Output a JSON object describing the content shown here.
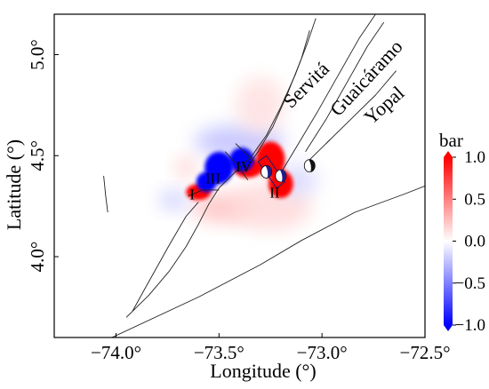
{
  "chart_data": {
    "type": "heatmap",
    "title": "",
    "xlabel": "Longitude (°)",
    "ylabel": "Latitude (°)",
    "xlim": [
      -74.3,
      -72.5
    ],
    "ylim": [
      3.6,
      5.2
    ],
    "xticks": [
      {
        "value": -74.0,
        "label": "−74.0°"
      },
      {
        "value": -73.5,
        "label": "−73.5°"
      },
      {
        "value": -73.0,
        "label": "−73.0°"
      },
      {
        "value": -72.5,
        "label": "−72.5°"
      }
    ],
    "yticks": [
      {
        "value": 4.0,
        "label": "4.0°"
      },
      {
        "value": 4.5,
        "label": "4.5°"
      },
      {
        "value": 5.0,
        "label": "5.0°"
      }
    ],
    "colorbar": {
      "title": "bar",
      "vmin": -1.0,
      "vmax": 1.0,
      "ticks": [
        {
          "value": 1.0,
          "label": "1.0"
        },
        {
          "value": 0.5,
          "label": "0.5"
        },
        {
          "value": 0.0,
          "label": "0.0"
        },
        {
          "value": -0.5,
          "label": "−0.5"
        },
        {
          "value": -1.0,
          "label": "−1.0"
        }
      ],
      "colors": {
        "negative": "#0000ff",
        "zero": "#ffffff",
        "positive": "#ff0000"
      }
    },
    "stress_lobes": [
      {
        "lon": -73.25,
        "lat": 4.48,
        "rx": 0.07,
        "ry": 0.09,
        "value": 1.0
      },
      {
        "lon": -73.2,
        "lat": 4.36,
        "rx": 0.06,
        "ry": 0.07,
        "value": 1.0
      },
      {
        "lon": -73.6,
        "lat": 4.32,
        "rx": 0.06,
        "ry": 0.04,
        "value": 1.0
      },
      {
        "lon": -73.36,
        "lat": 4.44,
        "rx": 0.07,
        "ry": 0.05,
        "value": 1.0
      },
      {
        "lon": -73.5,
        "lat": 4.44,
        "rx": 0.07,
        "ry": 0.08,
        "value": -1.0
      },
      {
        "lon": -73.39,
        "lat": 4.48,
        "rx": 0.06,
        "ry": 0.06,
        "value": -1.0
      },
      {
        "lon": -73.56,
        "lat": 4.37,
        "rx": 0.05,
        "ry": 0.05,
        "value": -1.0
      },
      {
        "lon": -73.4,
        "lat": 4.57,
        "rx": 0.22,
        "ry": 0.08,
        "value": -0.25
      },
      {
        "lon": -73.48,
        "lat": 4.24,
        "rx": 0.15,
        "ry": 0.07,
        "value": 0.25
      },
      {
        "lon": -73.25,
        "lat": 4.25,
        "rx": 0.2,
        "ry": 0.12,
        "value": 0.15
      },
      {
        "lon": -73.12,
        "lat": 4.38,
        "rx": 0.1,
        "ry": 0.08,
        "value": -0.15
      },
      {
        "lon": -73.72,
        "lat": 4.28,
        "rx": 0.07,
        "ry": 0.05,
        "value": -0.2
      },
      {
        "lon": -73.66,
        "lat": 4.44,
        "rx": 0.05,
        "ry": 0.05,
        "value": 0.2
      },
      {
        "lon": -73.3,
        "lat": 4.75,
        "rx": 0.12,
        "ry": 0.14,
        "value": 0.12
      }
    ],
    "faults": [
      {
        "name": "main-trend",
        "points": [
          [
            -74.06,
            4.4
          ],
          [
            -74.05,
            4.3
          ],
          [
            -74.04,
            4.22
          ]
        ]
      },
      {
        "name": "sw-segment",
        "points": [
          [
            -73.95,
            3.7
          ],
          [
            -73.84,
            3.81
          ],
          [
            -73.74,
            3.93
          ],
          [
            -73.66,
            4.05
          ],
          [
            -73.6,
            4.16
          ],
          [
            -73.55,
            4.26
          ],
          [
            -73.5,
            4.34
          ],
          [
            -73.42,
            4.42
          ],
          [
            -73.34,
            4.5
          ],
          [
            -73.27,
            4.6
          ],
          [
            -73.2,
            4.74
          ],
          [
            -73.13,
            4.9
          ],
          [
            -73.07,
            5.06
          ],
          [
            -73.03,
            5.18
          ]
        ]
      },
      {
        "name": "southern",
        "points": [
          [
            -73.92,
            3.73
          ],
          [
            -73.85,
            3.86
          ],
          [
            -73.74,
            4.06
          ],
          [
            -73.66,
            4.2
          ],
          [
            -73.6,
            4.27
          ]
        ]
      },
      {
        "name": "servita",
        "points": [
          [
            -73.38,
            4.42
          ],
          [
            -73.31,
            4.52
          ],
          [
            -73.24,
            4.64
          ],
          [
            -73.17,
            4.8
          ],
          [
            -73.1,
            4.98
          ],
          [
            -73.06,
            5.12
          ]
        ]
      },
      {
        "name": "guaicaramo",
        "points": [
          [
            -73.22,
            4.38
          ],
          [
            -73.12,
            4.55
          ],
          [
            -73.02,
            4.72
          ],
          [
            -72.92,
            4.9
          ],
          [
            -72.82,
            5.08
          ],
          [
            -72.74,
            5.2
          ]
        ]
      },
      {
        "name": "guaicaramo-2",
        "points": [
          [
            -73.08,
            4.52
          ],
          [
            -72.98,
            4.68
          ],
          [
            -72.88,
            4.86
          ],
          [
            -72.78,
            5.04
          ],
          [
            -72.7,
            5.16
          ]
        ]
      },
      {
        "name": "yopal",
        "points": [
          [
            -72.98,
            4.56
          ],
          [
            -72.86,
            4.68
          ],
          [
            -72.74,
            4.8
          ],
          [
            -72.64,
            4.92
          ]
        ]
      },
      {
        "name": "yopal-2",
        "points": [
          [
            -73.06,
            4.48
          ],
          [
            -72.96,
            4.58
          ]
        ]
      },
      {
        "name": "east-lineament",
        "points": [
          [
            -74.02,
            3.6
          ],
          [
            -73.6,
            3.8
          ],
          [
            -73.3,
            3.96
          ],
          [
            -73.1,
            4.08
          ],
          [
            -72.84,
            4.22
          ],
          [
            -72.6,
            4.31
          ],
          [
            -72.5,
            4.35
          ]
        ]
      },
      {
        "name": "local-1",
        "points": [
          [
            -73.47,
            4.52
          ],
          [
            -73.41,
            4.45
          ],
          [
            -73.36,
            4.38
          ]
        ]
      },
      {
        "name": "local-2",
        "points": [
          [
            -73.42,
            4.56
          ],
          [
            -73.33,
            4.47
          ]
        ]
      },
      {
        "name": "local-3",
        "points": [
          [
            -73.65,
            4.3
          ],
          [
            -73.58,
            4.33
          ],
          [
            -73.5,
            4.33
          ]
        ]
      }
    ],
    "zones": [
      {
        "label": "I",
        "lon": -73.63,
        "lat": 4.3
      },
      {
        "label": "II",
        "lon": -73.23,
        "lat": 4.31
      },
      {
        "label": "III",
        "lon": -73.53,
        "lat": 4.38
      },
      {
        "label": "IV",
        "lon": -73.38,
        "lat": 4.44
      }
    ],
    "fault_names": [
      {
        "label": "Servitá",
        "lon": -73.15,
        "lat": 4.73,
        "rotation": -45
      },
      {
        "label": "Guaicáramo",
        "lon": -72.92,
        "lat": 4.69,
        "rotation": -47
      },
      {
        "label": "Yopal",
        "lon": -72.76,
        "lat": 4.65,
        "rotation": -42
      }
    ],
    "focal_mechanisms": [
      {
        "lon": -73.27,
        "lat": 4.42,
        "fill": "#1f1f8a"
      },
      {
        "lon": -73.2,
        "lat": 4.4,
        "fill": "#1f1f8a"
      },
      {
        "lon": -73.06,
        "lat": 4.45,
        "fill": "#111111"
      }
    ]
  }
}
